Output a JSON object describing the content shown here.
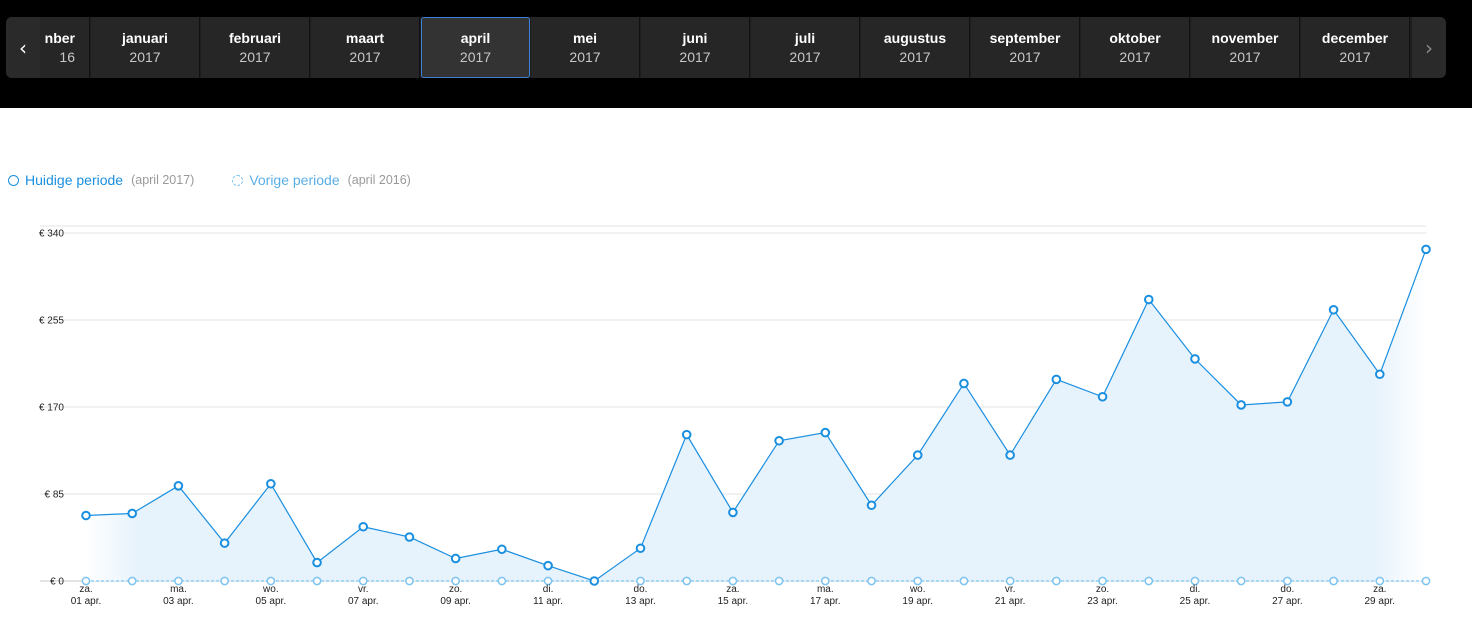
{
  "nav": {
    "prev_icon": "chevron-left-icon",
    "next_icon": "chevron-right-icon",
    "prev_glyph": "‹",
    "next_glyph": "›",
    "months": [
      {
        "month": "nber",
        "year": "16"
      },
      {
        "month": "januari",
        "year": "2017"
      },
      {
        "month": "februari",
        "year": "2017"
      },
      {
        "month": "maart",
        "year": "2017"
      },
      {
        "month": "april",
        "year": "2017",
        "active": true
      },
      {
        "month": "mei",
        "year": "2017"
      },
      {
        "month": "juni",
        "year": "2017"
      },
      {
        "month": "juli",
        "year": "2017"
      },
      {
        "month": "augustus",
        "year": "2017"
      },
      {
        "month": "september",
        "year": "2017"
      },
      {
        "month": "oktober",
        "year": "2017"
      },
      {
        "month": "november",
        "year": "2017"
      },
      {
        "month": "december",
        "year": "2017"
      }
    ]
  },
  "legend": {
    "current": {
      "label": "Huidige periode",
      "period": "(april 2017)"
    },
    "previous": {
      "label": "Vorige periode",
      "period": "(april 2016)"
    }
  },
  "colors": {
    "current": "#1a8fe0",
    "previous": "#7cc3f0",
    "fill": "#e6f2fc",
    "grid": "#e3e3e3"
  },
  "chart_data": {
    "type": "line",
    "x": [
      "01 apr.",
      "02 apr.",
      "03 apr.",
      "04 apr.",
      "05 apr.",
      "06 apr.",
      "07 apr.",
      "08 apr.",
      "09 apr.",
      "10 apr.",
      "11 apr.",
      "12 apr.",
      "13 apr.",
      "14 apr.",
      "15 apr.",
      "16 apr.",
      "17 apr.",
      "18 apr.",
      "19 apr.",
      "20 apr.",
      "21 apr.",
      "22 apr.",
      "23 apr.",
      "24 apr.",
      "25 apr.",
      "26 apr.",
      "27 apr.",
      "28 apr.",
      "29 apr.",
      "30 apr."
    ],
    "x_tick_labels": [
      {
        "day": "za.",
        "date": "01 apr."
      },
      {
        "day": "ma.",
        "date": "03 apr."
      },
      {
        "day": "wo.",
        "date": "05 apr."
      },
      {
        "day": "vr.",
        "date": "07 apr."
      },
      {
        "day": "zo.",
        "date": "09 apr."
      },
      {
        "day": "di.",
        "date": "11 apr."
      },
      {
        "day": "do.",
        "date": "13 apr."
      },
      {
        "day": "za.",
        "date": "15 apr."
      },
      {
        "day": "ma.",
        "date": "17 apr."
      },
      {
        "day": "wo.",
        "date": "19 apr."
      },
      {
        "day": "vr.",
        "date": "21 apr."
      },
      {
        "day": "zo.",
        "date": "23 apr."
      },
      {
        "day": "di.",
        "date": "25 apr."
      },
      {
        "day": "do.",
        "date": "27 apr."
      },
      {
        "day": "za.",
        "date": "29 apr."
      }
    ],
    "y_ticks": [
      {
        "value": 0,
        "label": "€ 0"
      },
      {
        "value": 85,
        "label": "€ 85"
      },
      {
        "value": 170,
        "label": "€ 170"
      },
      {
        "value": 255,
        "label": "€ 255"
      },
      {
        "value": 340,
        "label": "€ 340"
      }
    ],
    "ylim": [
      0,
      340
    ],
    "grid": true,
    "series": [
      {
        "name": "Huidige periode",
        "values": [
          64,
          66,
          93,
          37,
          95,
          18,
          53,
          43,
          22,
          31,
          15,
          0,
          32,
          143,
          67,
          137,
          145,
          74,
          123,
          193,
          123,
          197,
          180,
          275,
          217,
          172,
          175,
          265,
          202,
          324
        ]
      },
      {
        "name": "Vorige periode",
        "values": [
          0,
          0,
          0,
          0,
          0,
          0,
          0,
          0,
          0,
          0,
          0,
          0,
          0,
          0,
          0,
          0,
          0,
          0,
          0,
          0,
          0,
          0,
          0,
          0,
          0,
          0,
          0,
          0,
          0,
          0
        ]
      }
    ]
  }
}
